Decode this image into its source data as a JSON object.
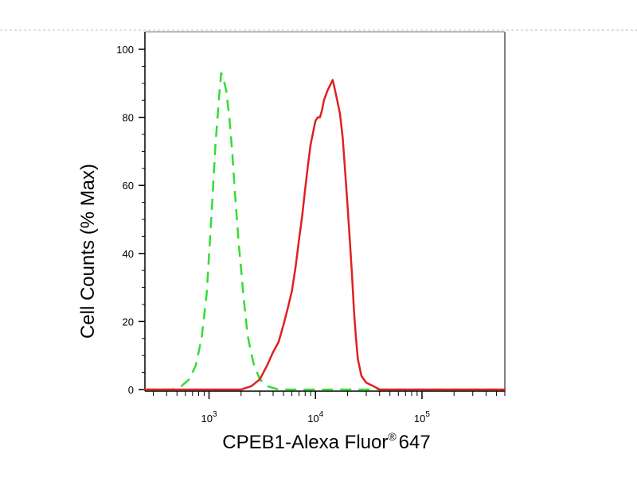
{
  "chart_data": {
    "type": "line",
    "title": "",
    "xlabel": "CPEB1-Alexa Fluor",
    "xlabel_superscript": "®",
    "xlabel_suffix": "647",
    "ylabel": "Cell Counts (% Max)",
    "x_scale": "log",
    "xlim": [
      250,
      600000
    ],
    "ylim": [
      0,
      100
    ],
    "y_ticks": [
      {
        "value": 0,
        "label": "0"
      },
      {
        "value": 20,
        "label": "20"
      },
      {
        "value": 40,
        "label": "40"
      },
      {
        "value": 60,
        "label": "60"
      },
      {
        "value": 80,
        "label": "80"
      },
      {
        "value": 100,
        "label": "100"
      }
    ],
    "x_ticks": [
      {
        "value": 1000,
        "base": "10",
        "exp": "3"
      },
      {
        "value": 10000,
        "base": "10",
        "exp": "4"
      },
      {
        "value": 100000,
        "base": "10",
        "exp": "5"
      }
    ],
    "grid": false,
    "legend": "none",
    "series": [
      {
        "style": "dashed",
        "color": "#33dd33",
        "x": [
          250,
          350,
          450,
          550,
          650,
          750,
          850,
          950,
          1050,
          1150,
          1250,
          1300,
          1350,
          1450,
          1550,
          1650,
          1750,
          1900,
          2100,
          2300,
          2600,
          3000,
          3500,
          4500,
          10000,
          50000,
          600000
        ],
        "y": [
          0,
          0,
          0,
          1,
          3,
          7,
          15,
          28,
          50,
          72,
          87,
          93,
          92,
          88,
          80,
          70,
          58,
          43,
          28,
          16,
          8,
          3,
          1,
          0,
          0,
          0,
          0
        ]
      },
      {
        "style": "solid",
        "color": "#e02020",
        "x": [
          250,
          1500,
          2000,
          2500,
          3000,
          3500,
          4000,
          4500,
          5000,
          5500,
          6000,
          6500,
          7000,
          7500,
          8000,
          8500,
          9000,
          10000,
          10500,
          11000,
          11500,
          12000,
          13000,
          14000,
          14500,
          15000,
          16000,
          17000,
          18000,
          19000,
          20000,
          21000,
          22000,
          23000,
          24000,
          25000,
          27000,
          30000,
          35000,
          40000,
          50000,
          600000
        ],
        "y": [
          0,
          0,
          0,
          1,
          3,
          7,
          11,
          14,
          19,
          24,
          29,
          36,
          44,
          51,
          59,
          66,
          72,
          79,
          80,
          80,
          82,
          85,
          88,
          90,
          91,
          89,
          85,
          81,
          74,
          64,
          54,
          44,
          34,
          23,
          15,
          9,
          4,
          2,
          1,
          0,
          0,
          0
        ]
      }
    ]
  }
}
